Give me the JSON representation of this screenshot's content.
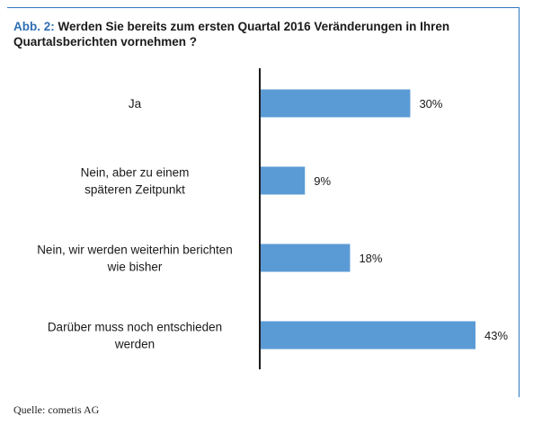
{
  "figure": {
    "prefix": "Abb. 2:",
    "title": "Werden Sie bereits zum ersten Quartal 2016 Veränderungen in Ihren Quartalsberichten vornehmen ?",
    "source": "Quelle: cometis AG"
  },
  "colors": {
    "bar": "#5b9bd5",
    "axis": "#1a1a1a",
    "accent": "#2f6fb5",
    "frame": "#2f78c0"
  },
  "chart_data": {
    "type": "bar",
    "orientation": "horizontal",
    "categories": [
      [
        "Ja"
      ],
      [
        "Nein, aber zu einem",
        "späteren Zeitpunkt"
      ],
      [
        "Nein, wir werden weiterhin berichten",
        "wie bisher"
      ],
      [
        "Darüber muss noch entschieden",
        "werden"
      ]
    ],
    "values": [
      30,
      9,
      18,
      43
    ],
    "value_labels": [
      "30%",
      "9%",
      "18%",
      "43%"
    ],
    "xlim": [
      0,
      43
    ]
  }
}
